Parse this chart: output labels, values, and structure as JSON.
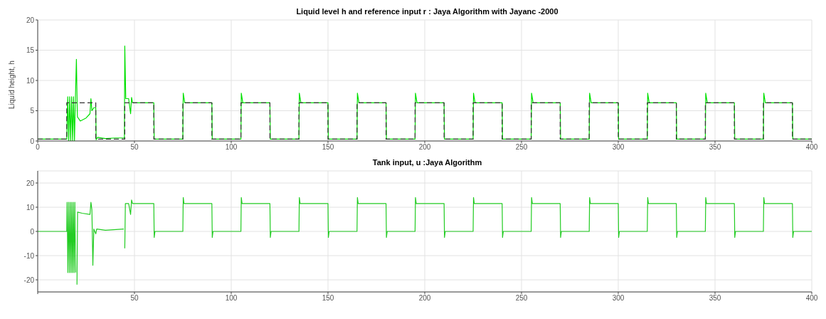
{
  "chart_data": [
    {
      "type": "line",
      "title": "Liquid level h and reference input r : Jaya Algorithm with Jayanc -2000",
      "ylabel": "Liquid height, h",
      "xlim": [
        0,
        400
      ],
      "ylim": [
        0,
        20
      ],
      "xticks": [
        0,
        50,
        100,
        150,
        200,
        250,
        300,
        350,
        400
      ],
      "yticks": [
        0,
        5,
        10,
        15,
        20
      ],
      "grid": true,
      "series": [
        {
          "color": "#00e000",
          "line_style": "solid",
          "x": [
            0,
            15,
            15.5,
            16,
            16.5,
            17,
            17.5,
            18,
            18.5,
            19,
            19.5,
            20,
            20.5,
            22,
            25,
            27,
            27.5,
            28,
            29,
            30,
            30.2,
            31,
            35,
            40,
            44.8,
            45,
            45.5,
            47,
            48,
            48.5,
            49,
            60,
            60.2,
            75,
            75.2,
            76,
            90,
            90.2,
            105,
            105.2,
            106,
            120,
            120.2,
            135,
            135.2,
            136,
            150,
            150.2,
            165,
            165.2,
            166,
            180,
            180.2,
            195,
            195.2,
            196,
            210,
            210.2,
            225,
            225.2,
            226,
            240,
            240.2,
            255,
            255.2,
            256,
            270,
            270.2,
            285,
            285.2,
            286,
            300,
            300.2,
            315,
            315.2,
            316,
            330,
            330.2,
            345,
            345.2,
            346,
            360,
            360.2,
            375,
            375.2,
            376,
            390,
            390.2,
            400
          ],
          "values": [
            0.3,
            0.3,
            7.3,
            0,
            7.3,
            0,
            7.3,
            0,
            7.3,
            0,
            7.3,
            13.5,
            4,
            3.3,
            3.8,
            4.5,
            7,
            5,
            5.5,
            5.5,
            0.2,
            0.6,
            0.4,
            0.5,
            0.5,
            15.7,
            7,
            7,
            4.5,
            7.2,
            6.3,
            6.3,
            0.3,
            0.3,
            7.9,
            6.3,
            6.3,
            0.3,
            0.3,
            7.9,
            6.3,
            6.3,
            0.3,
            0.3,
            7.9,
            6.3,
            6.3,
            0.3,
            0.3,
            7.9,
            6.3,
            6.3,
            0.3,
            0.3,
            7.9,
            6.3,
            6.3,
            0.3,
            0.3,
            7.9,
            6.3,
            6.3,
            0.3,
            0.3,
            7.9,
            6.3,
            6.3,
            0.3,
            0.3,
            7.9,
            6.3,
            6.3,
            0.3,
            0.3,
            7.9,
            6.3,
            6.3,
            0.3,
            0.3,
            7.9,
            6.3,
            6.3,
            0.3,
            0.3,
            7.9,
            6.3,
            6.3,
            0.3,
            0.3
          ]
        },
        {
          "color": "#333333",
          "line_style": "dashed",
          "x": [
            0,
            15,
            15,
            30,
            30,
            45,
            45,
            60,
            60,
            75,
            75,
            90,
            90,
            105,
            105,
            120,
            120,
            135,
            135,
            150,
            150,
            165,
            165,
            180,
            180,
            195,
            195,
            210,
            210,
            225,
            225,
            240,
            240,
            255,
            255,
            270,
            270,
            285,
            285,
            300,
            300,
            315,
            315,
            330,
            330,
            345,
            345,
            360,
            360,
            375,
            375,
            390,
            390,
            400
          ],
          "values": [
            0.3,
            0.3,
            6.3,
            6.3,
            0.3,
            0.3,
            6.3,
            6.3,
            0.3,
            0.3,
            6.3,
            6.3,
            0.3,
            0.3,
            6.3,
            6.3,
            0.3,
            0.3,
            6.3,
            6.3,
            0.3,
            0.3,
            6.3,
            6.3,
            0.3,
            0.3,
            6.3,
            6.3,
            0.3,
            0.3,
            6.3,
            6.3,
            0.3,
            0.3,
            6.3,
            6.3,
            0.3,
            0.3,
            6.3,
            6.3,
            0.3,
            0.3,
            6.3,
            6.3,
            0.3,
            0.3,
            6.3,
            6.3,
            0.3,
            0.3,
            6.3,
            6.3,
            0.3,
            0.3
          ]
        }
      ]
    },
    {
      "type": "line",
      "title": "Tank input, u :Jaya Algorithm",
      "xlim": [
        0,
        400
      ],
      "ylim": [
        -25,
        25
      ],
      "xticks": [
        {
          "value": 0,
          "label": null
        },
        50,
        100,
        150,
        200,
        250,
        300,
        350,
        400
      ],
      "yticks": [
        -20,
        -10,
        0,
        10,
        20
      ],
      "grid": true,
      "series": [
        {
          "color": "#22cc22",
          "line_style": "solid",
          "x": [
            0,
            15,
            15.2,
            15.6,
            16,
            16.4,
            16.8,
            17.2,
            17.6,
            18,
            18.4,
            18.8,
            19.2,
            19.6,
            20,
            20.3,
            20.6,
            23,
            27,
            27.5,
            28,
            28.5,
            29,
            30,
            30.5,
            35,
            44.5,
            44.8,
            45,
            45.3,
            47,
            48,
            48.5,
            49,
            60,
            60.2,
            60.6,
            75,
            75.2,
            75.6,
            90,
            90.2,
            90.6,
            105,
            105.2,
            105.6,
            120,
            120.2,
            120.6,
            135,
            135.2,
            135.6,
            150,
            150.2,
            150.6,
            165,
            165.2,
            165.6,
            180,
            180.2,
            180.6,
            195,
            195.2,
            195.6,
            210,
            210.2,
            210.6,
            225,
            225.2,
            225.6,
            240,
            240.2,
            240.6,
            255,
            255.2,
            255.6,
            270,
            270.2,
            270.6,
            285,
            285.2,
            285.6,
            300,
            300.2,
            300.6,
            315,
            315.2,
            315.6,
            330,
            330.2,
            330.6,
            345,
            345.2,
            345.6,
            360,
            360.2,
            360.6,
            375,
            375.2,
            375.6,
            390,
            390.2,
            390.6,
            400
          ],
          "values": [
            0,
            0,
            12,
            -17,
            12,
            -17,
            12,
            -17,
            12,
            -17,
            12,
            -17,
            12,
            -17,
            null,
            -22,
            8,
            7.5,
            7,
            12,
            9,
            -14,
            1,
            -1,
            1,
            0.5,
            1,
            null,
            -7,
            11.5,
            11.5,
            7,
            13,
            11.5,
            11.5,
            -2.5,
            0,
            0,
            14,
            11.5,
            11.5,
            -2.5,
            0,
            0,
            14,
            11.5,
            11.5,
            -2.5,
            0,
            0,
            14,
            11.5,
            11.5,
            -2.5,
            0,
            0,
            14,
            11.5,
            11.5,
            -2.5,
            0,
            0,
            14,
            11.5,
            11.5,
            -2.5,
            0,
            0,
            14,
            11.5,
            11.5,
            -2.5,
            0,
            0,
            14,
            11.5,
            11.5,
            -2.5,
            0,
            0,
            14,
            11.5,
            11.5,
            -2.5,
            0,
            0,
            14,
            11.5,
            11.5,
            -2.5,
            0,
            0,
            14,
            11.5,
            11.5,
            -2.5,
            0,
            0,
            14,
            11.5,
            11.5,
            -2.5,
            0,
            0
          ]
        }
      ]
    }
  ]
}
